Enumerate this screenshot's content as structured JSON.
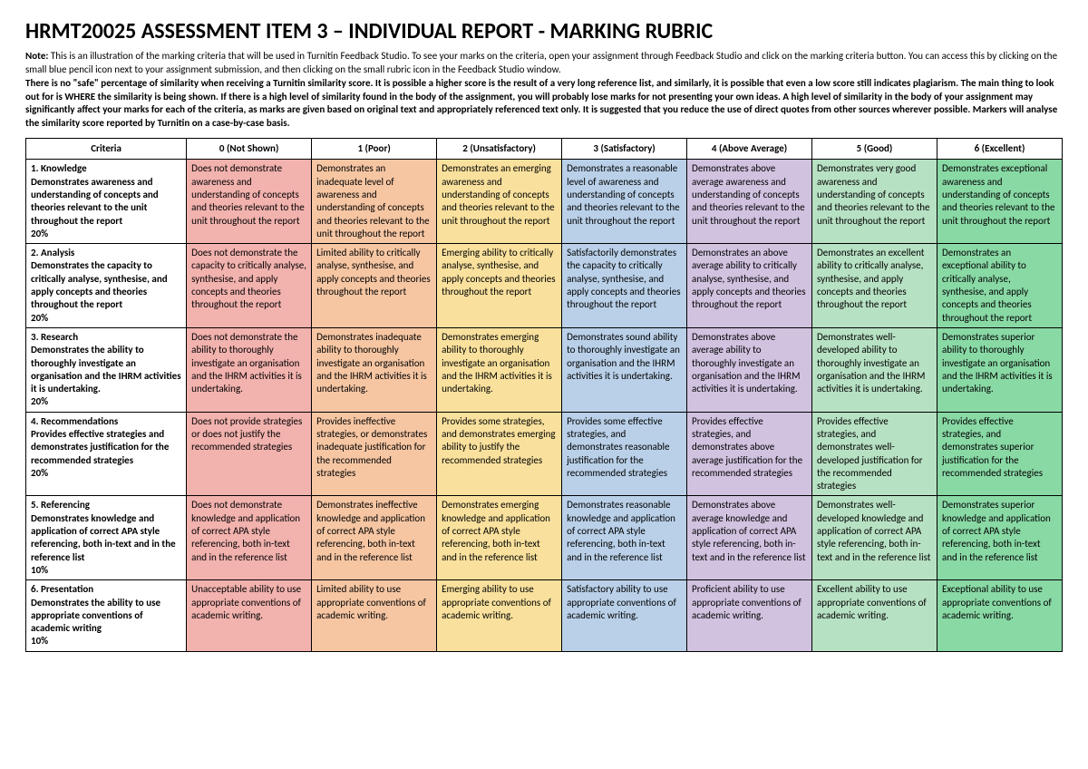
{
  "title": "HRMT20025 ASSESSMENT ITEM 3 – INDIVIDUAL REPORT - MARKING RUBRIC",
  "note_label": "Note:",
  "note_p1": " This is an illustration of the marking criteria that will be used in Turnitin Feedback Studio. To see your marks on the criteria, open your assignment through Feedback Studio and click on the marking criteria button. You can access this by clicking on the small blue pencil icon next to your assignment submission, and then clicking on the small rubric icon in the Feedback Studio window.",
  "note_p2": "There is no \"safe\" percentage of similarity when receiving a Turnitin similarity score. It is possible a higher score is the result of a very long reference list, and similarly, it is possible that even a low score still indicates plagiarism. The main thing to look out for is WHERE the similarity is being shown. If there is a high level of similarity found in the body of the assignment, you will probably lose marks for not presenting your own ideas. A high level of similarity in the body of your assignment may significantly affect your marks for each of the criteria, as marks are given based on original text and appropriately referenced text only. It is suggested that you reduce the use of direct quotes from other sources wherever possible. Markers will analyse the similarity score reported by Turnitin on a case-by-case basis.",
  "headers": {
    "criteria": "Criteria",
    "l0": "0 (Not Shown)",
    "l1": "1 (Poor)",
    "l2": "2 (Unsatisfactory)",
    "l3": "3 (Satisfactory)",
    "l4": "4 (Above Average)",
    "l5": "5 (Good)",
    "l6": "6 (Excellent)"
  },
  "colors": {
    "l0": "#f2b2ae",
    "l1": "#f6c6a3",
    "l2": "#f9e19d",
    "l3": "#b9d0e8",
    "l4": "#d1c2e0",
    "l5": "#b7e1c3",
    "l6": "#89d9a5"
  },
  "rows": [
    {
      "title": "1. Knowledge",
      "desc": "Demonstrates awareness and understanding of concepts and theories relevant to the unit throughout the report",
      "weight": "20%",
      "c0": "Does not demonstrate awareness and understanding of concepts and theories relevant to the unit throughout the report",
      "c1": "Demonstrates an inadequate level of awareness and understanding of concepts and theories relevant to the unit throughout the report",
      "c2": "Demonstrates an emerging awareness and understanding of concepts and theories relevant to the unit throughout the report",
      "c3": "Demonstrates a reasonable level of awareness and understanding of concepts and theories relevant to the unit throughout the report",
      "c4": "Demonstrates above average awareness and understanding of concepts and theories relevant to the unit throughout the report",
      "c5": "Demonstrates very good awareness and understanding of concepts and theories relevant to the unit throughout the report",
      "c6": "Demonstrates exceptional awareness and understanding of concepts and theories relevant to the unit throughout the report"
    },
    {
      "title": "2. Analysis",
      "desc": "Demonstrates the capacity to critically analyse, synthesise, and apply concepts and theories throughout the report",
      "weight": "20%",
      "c0": "Does not demonstrate the capacity to critically analyse, synthesise, and apply concepts and theories throughout the report",
      "c1": "Limited ability to critically analyse, synthesise, and apply concepts and theories throughout the report",
      "c2": "Emerging ability to critically analyse, synthesise, and apply concepts and theories throughout the report",
      "c3": "Satisfactorily demonstrates the capacity to critically analyse, synthesise, and apply concepts and theories throughout the report",
      "c4": "Demonstrates an above average ability to critically analyse, synthesise, and apply concepts and theories throughout the report",
      "c5": "Demonstrates an excellent ability to critically analyse, synthesise, and apply concepts and theories throughout the report",
      "c6": "Demonstrates an exceptional ability to critically analyse, synthesise, and apply concepts and theories throughout the report"
    },
    {
      "title": "3. Research",
      "desc": "Demonstrates the ability to thoroughly investigate an organisation and the IHRM activities it is undertaking.",
      "weight": "20%",
      "c0": "Does not demonstrate the ability to thoroughly investigate an organisation and the IHRM activities it is undertaking.",
      "c1": "Demonstrates inadequate ability to thoroughly investigate an organisation and the IHRM activities it is undertaking.",
      "c2": "Demonstrates emerging ability to thoroughly investigate an organisation and the IHRM activities it is undertaking.",
      "c3": "Demonstrates sound ability to thoroughly investigate an organisation and the IHRM activities it is undertaking.",
      "c4": "Demonstrates above average ability to thoroughly investigate an organisation and the IHRM activities it is undertaking.",
      "c5": "Demonstrates well-developed ability to thoroughly investigate an organisation and the IHRM activities it is undertaking.",
      "c6": "Demonstrates superior ability to thoroughly investigate an organisation and the IHRM activities it is undertaking."
    },
    {
      "title": "4. Recommendations",
      "desc": "Provides effective strategies and demonstrates justification for the recommended strategies",
      "weight": "20%",
      "c0": "Does not provide strategies or does not justify the recommended strategies",
      "c1": "Provides ineffective strategies, or demonstrates inadequate justification for the recommended strategies",
      "c2": "Provides some strategies, and demonstrates emerging ability to justify the recommended strategies",
      "c3": "Provides some effective strategies, and demonstrates reasonable justification for the recommended strategies",
      "c4": "Provides effective strategies, and demonstrates above average justification for the recommended strategies",
      "c5": "Provides effective strategies, and demonstrates well-developed justification for the recommended strategies",
      "c6": "Provides effective strategies, and demonstrates superior justification for the recommended strategies"
    },
    {
      "title": "5. Referencing",
      "desc": "Demonstrates knowledge and application of correct APA style referencing, both in-text and in the reference list",
      "weight": "10%",
      "c0": "Does not demonstrate knowledge and application of correct APA style referencing, both in-text and in the reference list",
      "c1": "Demonstrates ineffective knowledge and application of correct APA style referencing, both in-text and in the reference list",
      "c2": "Demonstrates emerging knowledge and application of correct APA style referencing, both in-text and in the reference list",
      "c3": "Demonstrates reasonable knowledge and application of correct APA style referencing, both in-text and in the reference list",
      "c4": "Demonstrates above average knowledge and application of correct APA style referencing, both in-text and in the reference list",
      "c5": "Demonstrates well-developed knowledge and application of correct APA style referencing, both in-text and in the reference list",
      "c6": "Demonstrates superior knowledge and application of correct APA style referencing, both in-text and in the reference list"
    },
    {
      "title": "6. Presentation",
      "desc": "Demonstrates the ability to use appropriate conventions of academic writing",
      "weight": "10%",
      "c0": "Unacceptable ability to use appropriate conventions of academic writing.",
      "c1": "Limited ability to use appropriate conventions of academic writing.",
      "c2": "Emerging ability to use appropriate conventions of academic writing.",
      "c3": "Satisfactory ability to use appropriate conventions of academic writing.",
      "c4": "Proficient ability to use appropriate conventions of academic writing.",
      "c5": "Excellent ability to use appropriate conventions of academic writing.",
      "c6": "Exceptional ability to use appropriate conventions of academic writing."
    }
  ]
}
